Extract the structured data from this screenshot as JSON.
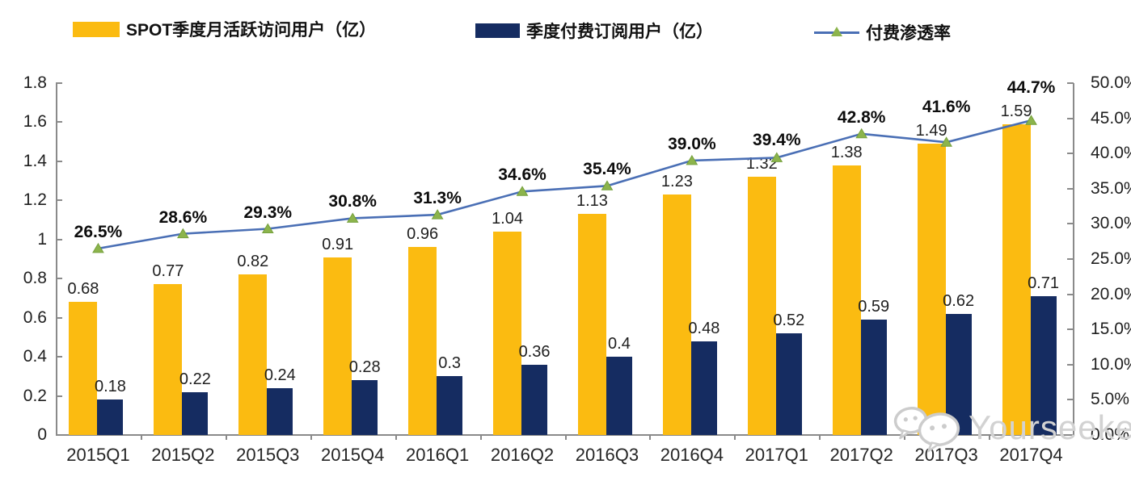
{
  "legend": {
    "items": [
      {
        "label": "SPOT季度月活跃访问用户（亿）",
        "swatch": "bar",
        "color": "#FBBB11"
      },
      {
        "label": "季度付费订阅用户（亿）",
        "swatch": "bar",
        "color": "#152C61"
      },
      {
        "label": "付费渗透率",
        "swatch": "line",
        "color": "#4A6FB5",
        "marker": "triangle",
        "marker_color": "#8CB44C"
      }
    ]
  },
  "watermark": {
    "text": "Yourseeker",
    "icon": "wechat-chat-bubbles-icon",
    "color": "#d2d2d2"
  },
  "chart_data": {
    "type": "combo-bar-line",
    "categories": [
      "2015Q1",
      "2015Q2",
      "2015Q3",
      "2015Q4",
      "2016Q1",
      "2016Q2",
      "2016Q3",
      "2016Q4",
      "2017Q1",
      "2017Q2",
      "2017Q3",
      "2017Q4"
    ],
    "series": [
      {
        "name": "SPOT季度月活跃访问用户（亿）",
        "type": "bar",
        "axis": "left",
        "color": "#FBBB11",
        "values": [
          0.68,
          0.77,
          0.82,
          0.91,
          0.96,
          1.04,
          1.13,
          1.23,
          1.32,
          1.38,
          1.49,
          1.59
        ],
        "labels": [
          "0.68",
          "0.77",
          "0.82",
          "0.91",
          "0.96",
          "1.04",
          "1.13",
          "1.23",
          "1.32",
          "1.38",
          "1.49",
          "1.59"
        ]
      },
      {
        "name": "季度付费订阅用户（亿）",
        "type": "bar",
        "axis": "left",
        "color": "#152C61",
        "values": [
          0.18,
          0.22,
          0.24,
          0.28,
          0.3,
          0.36,
          0.4,
          0.48,
          0.52,
          0.59,
          0.62,
          0.71
        ],
        "labels": [
          "0.18",
          "0.22",
          "0.24",
          "0.28",
          "0.3",
          "0.36",
          "0.4",
          "0.48",
          "0.52",
          "0.59",
          "0.62",
          "0.71"
        ]
      },
      {
        "name": "付费渗透率",
        "type": "line",
        "axis": "right",
        "color": "#4A6FB5",
        "marker": "triangle",
        "marker_color": "#8CB44C",
        "marker_edge_color": "#75A03C",
        "values": [
          26.5,
          28.6,
          29.3,
          30.8,
          31.3,
          34.6,
          35.4,
          39.0,
          39.4,
          42.8,
          41.6,
          44.7
        ],
        "labels": [
          "26.5%",
          "28.6%",
          "29.3%",
          "30.8%",
          "31.3%",
          "34.6%",
          "35.4%",
          "39.0%",
          "39.4%",
          "42.8%",
          "41.6%",
          "44.7%"
        ]
      }
    ],
    "left_axis": {
      "min": 0,
      "max": 1.8,
      "step": 0.2,
      "ticks": [
        "0",
        "0.2",
        "0.4",
        "0.6",
        "0.8",
        "1",
        "1.2",
        "1.4",
        "1.6",
        "1.8"
      ]
    },
    "right_axis": {
      "min": 0,
      "max": 50,
      "step": 5,
      "ticks": [
        "0.0%",
        "5.0%",
        "10.0%",
        "15.0%",
        "20.0%",
        "25.0%",
        "30.0%",
        "35.0%",
        "40.0%",
        "45.0%",
        "50.0%"
      ]
    },
    "grid": false,
    "legend_position": "top"
  }
}
